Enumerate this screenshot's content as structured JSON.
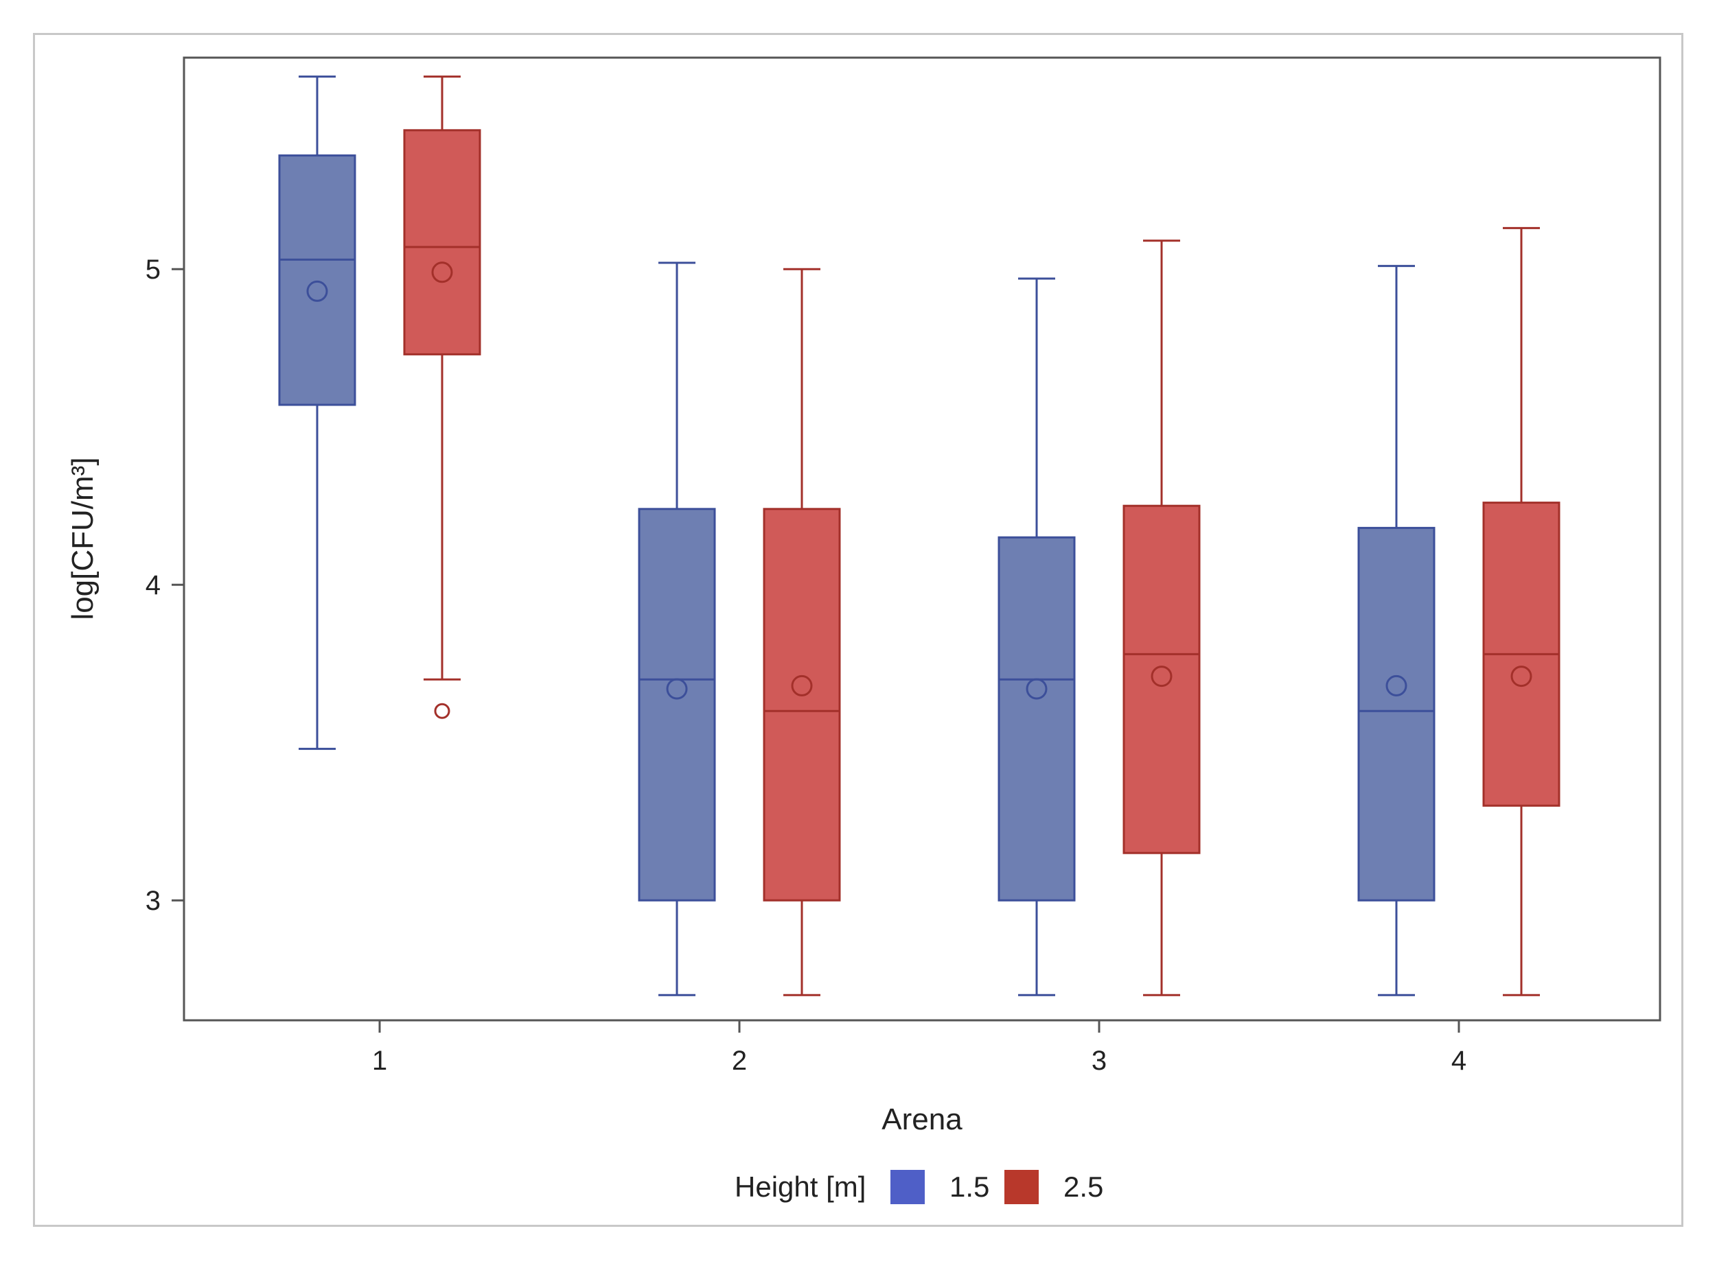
{
  "chart_data": {
    "type": "boxplot",
    "title": "",
    "xlabel": "Arena",
    "ylabel": "log[CFU/m³]",
    "categories": [
      "1",
      "2",
      "3",
      "4"
    ],
    "ylim": [
      2.62,
      5.67
    ],
    "yticks": [
      3,
      4,
      5
    ],
    "legend": {
      "title": "Height [m]",
      "position": "bottom",
      "entries": [
        {
          "name": "1.5",
          "swatch_color": "#4f5fc7"
        },
        {
          "name": "2.5",
          "swatch_color": "#b8382b"
        }
      ]
    },
    "series": [
      {
        "name": "1.5",
        "fill": "#6e7fb2",
        "stroke": "#3c4f9a",
        "boxes": [
          {
            "category": "1",
            "whisker_low": 3.48,
            "q1": 4.57,
            "median": 5.03,
            "q3": 5.36,
            "whisker_high": 5.61,
            "mean": 4.93,
            "outliers": []
          },
          {
            "category": "2",
            "whisker_low": 2.7,
            "q1": 3.0,
            "median": 3.7,
            "q3": 4.24,
            "whisker_high": 5.02,
            "mean": 3.67,
            "outliers": []
          },
          {
            "category": "3",
            "whisker_low": 2.7,
            "q1": 3.0,
            "median": 3.7,
            "q3": 4.15,
            "whisker_high": 4.97,
            "mean": 3.67,
            "outliers": []
          },
          {
            "category": "4",
            "whisker_low": 2.7,
            "q1": 3.0,
            "median": 3.6,
            "q3": 4.18,
            "whisker_high": 5.01,
            "mean": 3.68,
            "outliers": []
          }
        ]
      },
      {
        "name": "2.5",
        "fill": "#d05a58",
        "stroke": "#a3302a",
        "boxes": [
          {
            "category": "1",
            "whisker_low": 3.7,
            "q1": 4.73,
            "median": 5.07,
            "q3": 5.44,
            "whisker_high": 5.61,
            "mean": 4.99,
            "outliers": [
              3.6
            ]
          },
          {
            "category": "2",
            "whisker_low": 2.7,
            "q1": 3.0,
            "median": 3.6,
            "q3": 4.24,
            "whisker_high": 5.0,
            "mean": 3.68,
            "outliers": []
          },
          {
            "category": "3",
            "whisker_low": 2.7,
            "q1": 3.15,
            "median": 3.78,
            "q3": 4.25,
            "whisker_high": 5.09,
            "mean": 3.71,
            "outliers": []
          },
          {
            "category": "4",
            "whisker_low": 2.7,
            "q1": 3.3,
            "median": 3.78,
            "q3": 4.26,
            "whisker_high": 5.13,
            "mean": 3.71,
            "outliers": []
          }
        ]
      }
    ]
  }
}
